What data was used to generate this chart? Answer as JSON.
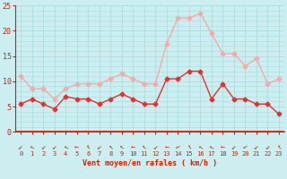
{
  "hours": [
    0,
    1,
    2,
    3,
    4,
    5,
    6,
    7,
    8,
    9,
    10,
    11,
    12,
    13,
    14,
    15,
    16,
    17,
    18,
    19,
    20,
    21,
    22,
    23
  ],
  "wind_avg": [
    5.5,
    6.5,
    5.5,
    4.5,
    7.0,
    6.5,
    6.5,
    5.5,
    6.5,
    7.5,
    6.5,
    5.5,
    5.5,
    10.5,
    10.5,
    12.0,
    12.0,
    6.5,
    9.5,
    6.5,
    6.5,
    5.5,
    5.5,
    3.5
  ],
  "wind_gust": [
    11.0,
    8.5,
    8.5,
    6.5,
    8.5,
    9.5,
    9.5,
    9.5,
    10.5,
    11.5,
    10.5,
    9.5,
    9.5,
    17.5,
    22.5,
    22.5,
    23.5,
    19.5,
    15.5,
    15.5,
    13.0,
    14.5,
    9.5,
    10.5
  ],
  "avg_color": "#dd3333",
  "gust_color": "#f5aaaa",
  "bg_color": "#cceef0",
  "grid_color": "#aadddd",
  "axis_color": "#cc2200",
  "text_color": "#cc2200",
  "xlabel": "Vent moyen/en rafales ( km/h )",
  "ylim": [
    0,
    25
  ],
  "yticks": [
    0,
    5,
    10,
    15,
    20,
    25
  ]
}
